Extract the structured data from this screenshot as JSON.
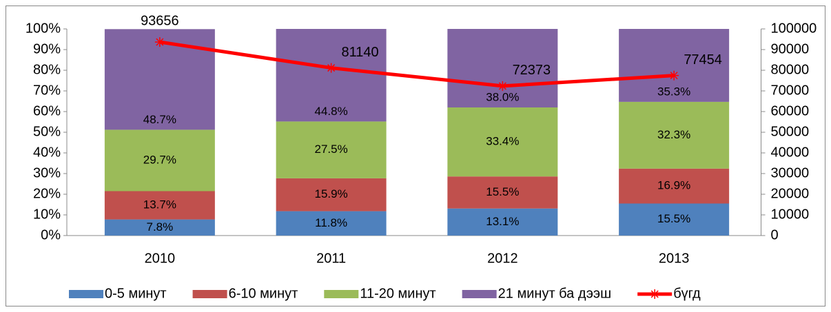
{
  "chart_data": {
    "type": "bar",
    "stacked": true,
    "categories": [
      "2010",
      "2011",
      "2012",
      "2013"
    ],
    "series": [
      {
        "name": "0-5 минут",
        "color": "#4f81bd",
        "values": [
          7.8,
          11.8,
          13.1,
          15.5
        ],
        "value_labels": [
          "7.8%",
          "11.8%",
          "13.1%",
          "15.5%"
        ]
      },
      {
        "name": "6-10 минут",
        "color": "#c0504d",
        "values": [
          13.7,
          15.9,
          15.5,
          16.9
        ],
        "value_labels": [
          "13.7%",
          "15.9%",
          "15.5%",
          "16.9%"
        ]
      },
      {
        "name": "11-20 минут",
        "color": "#9bbb59",
        "values": [
          29.7,
          27.5,
          33.4,
          32.3
        ],
        "value_labels": [
          "29.7%",
          "27.5%",
          "33.4%",
          "32.3%"
        ]
      },
      {
        "name": "21 минут ба дээш",
        "color": "#8064a2",
        "values": [
          48.7,
          44.8,
          38.0,
          35.3
        ],
        "value_labels": [
          "48.7%",
          "44.8%",
          "38.0%",
          "35.3%"
        ]
      },
      {
        "name": "бүгд",
        "color": "#ff0000",
        "type": "line",
        "axis": "y2",
        "values": [
          93656,
          81140,
          72373,
          77454
        ]
      }
    ],
    "ylim": [
      0,
      100
    ],
    "yticks": [
      {
        "value": 0,
        "label": "0%"
      },
      {
        "value": 10,
        "label": "10%"
      },
      {
        "value": 20,
        "label": "20%"
      },
      {
        "value": 30,
        "label": "30%"
      },
      {
        "value": 40,
        "label": "40%"
      },
      {
        "value": 50,
        "label": "50%"
      },
      {
        "value": 60,
        "label": "60%"
      },
      {
        "value": 70,
        "label": "70%"
      },
      {
        "value": 80,
        "label": "80%"
      },
      {
        "value": 90,
        "label": "90%"
      },
      {
        "value": 100,
        "label": "100%"
      }
    ],
    "y2lim": [
      0,
      100000
    ],
    "y2ticks": [
      0,
      10000,
      20000,
      30000,
      40000,
      50000,
      60000,
      70000,
      80000,
      90000,
      100000
    ],
    "legend": "bottom",
    "grid": false
  }
}
